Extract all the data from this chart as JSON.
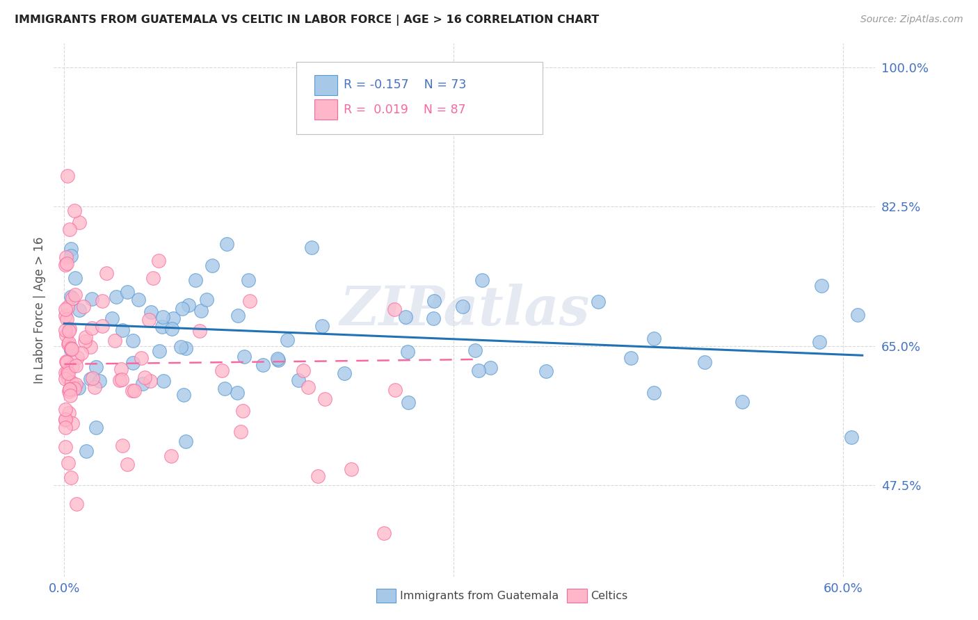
{
  "title": "IMMIGRANTS FROM GUATEMALA VS CELTIC IN LABOR FORCE | AGE > 16 CORRELATION CHART",
  "source": "Source: ZipAtlas.com",
  "ylabel": "In Labor Force | Age > 16",
  "ytick_labels": [
    "47.5%",
    "65.0%",
    "82.5%",
    "100.0%"
  ],
  "ytick_values": [
    0.475,
    0.65,
    0.825,
    1.0
  ],
  "ymin": 0.36,
  "ymax": 1.03,
  "xmin": -0.008,
  "xmax": 0.625,
  "color_blue_fill": "#a8c8e8",
  "color_blue_edge": "#5b9bd5",
  "color_pink_fill": "#ffb6c8",
  "color_pink_edge": "#f768a1",
  "color_blue_line": "#2171b5",
  "color_pink_line": "#f768a1",
  "color_axis_label": "#4472c4",
  "color_grid": "#d9d9d9",
  "watermark": "ZIPatlas",
  "legend_r1": "R = -0.157",
  "legend_n1": "N = 73",
  "legend_r2": "R =  0.019",
  "legend_n2": "N = 87",
  "blue_line_x0": 0.0,
  "blue_line_x1": 0.615,
  "blue_line_y0": 0.678,
  "blue_line_y1": 0.638,
  "pink_line_x0": 0.0,
  "pink_line_x1": 0.32,
  "pink_line_y0": 0.627,
  "pink_line_y1": 0.633
}
